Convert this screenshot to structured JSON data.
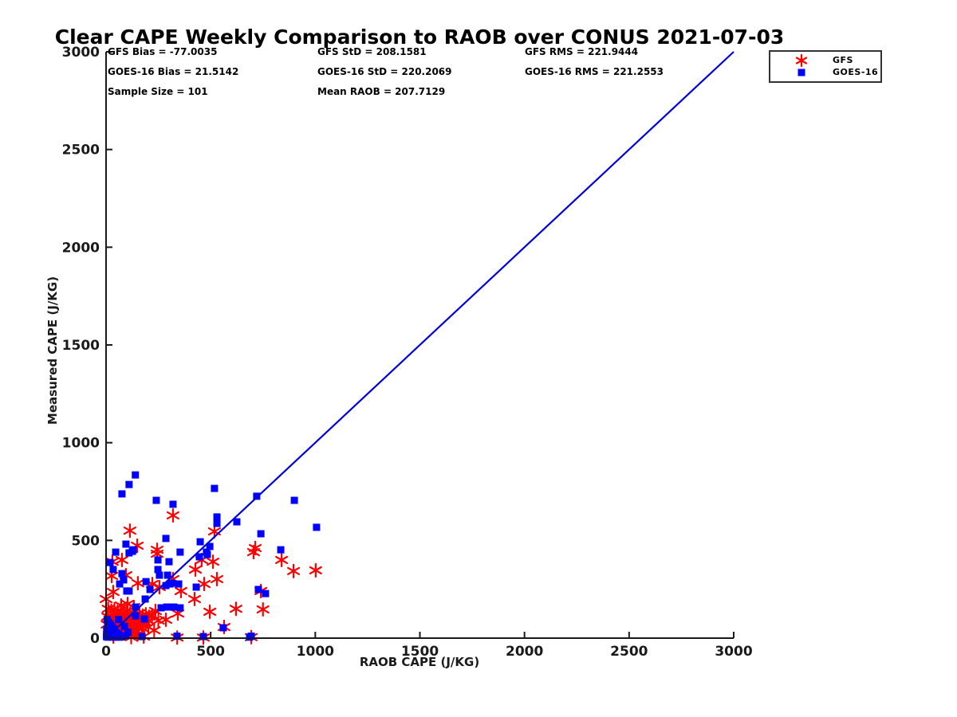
{
  "title": "Clear CAPE Weekly Comparison to RAOB over CONUS 2021-07-03",
  "stats": {
    "gfs_bias": "GFS Bias = -77.0035",
    "gfs_std": "GFS StD = 208.1581",
    "gfs_rms": "GFS RMS = 221.9444",
    "goes_bias": "GOES-16 Bias = 21.5142",
    "goes_std": "GOES-16 StD = 220.2069",
    "goes_rms": "GOES-16 RMS = 221.2553",
    "sample_size": "Sample Size = 101",
    "mean_raob": "Mean RAOB = 207.7129"
  },
  "colors": {
    "gfs": "#ff0000",
    "goes16": "#0000ff",
    "identity_line": "#0000dd",
    "axis": "#1a1a1a"
  },
  "chart_data": {
    "type": "scatter",
    "title": "Clear CAPE Weekly Comparison to RAOB over CONUS 2021-07-03",
    "xlabel": "RAOB CAPE (J/KG)",
    "ylabel": "Measured CAPE (J/KG)",
    "xlim": [
      0,
      3000
    ],
    "ylim": [
      0,
      3000
    ],
    "xticks": [
      0,
      500,
      1000,
      1500,
      2000,
      2500,
      3000
    ],
    "yticks": [
      0,
      500,
      1000,
      1500,
      2000,
      2500,
      3000
    ],
    "grid": false,
    "legend_position": "top-right",
    "identity_line": {
      "from": [
        0,
        0
      ],
      "to": [
        3000,
        3000
      ]
    },
    "annotations": [
      "GFS Bias = -77.0035",
      "GFS StD = 208.1581",
      "GFS RMS = 221.9444",
      "GOES-16 Bias = 21.5142",
      "GOES-16 StD = 220.2069",
      "GOES-16 RMS = 221.2553",
      "Sample Size = 101",
      "Mean RAOB = 207.7129"
    ],
    "series": [
      {
        "name": "GFS",
        "marker": "asterisk",
        "color": "#ff0000",
        "points": [
          [
            320,
            628
          ],
          [
            114,
            550
          ],
          [
            518,
            546
          ],
          [
            149,
            473
          ],
          [
            713,
            461
          ],
          [
            244,
            452
          ],
          [
            244,
            432
          ],
          [
            705,
            440
          ],
          [
            30,
            391
          ],
          [
            76,
            400
          ],
          [
            457,
            400
          ],
          [
            511,
            391
          ],
          [
            839,
            400
          ],
          [
            896,
            343
          ],
          [
            1002,
            347
          ],
          [
            427,
            351
          ],
          [
            423,
            200
          ],
          [
            469,
            277
          ],
          [
            530,
            302
          ],
          [
            320,
            302
          ],
          [
            358,
            241
          ],
          [
            27,
            318
          ],
          [
            95,
            322
          ],
          [
            152,
            281
          ],
          [
            221,
            277
          ],
          [
            255,
            261
          ],
          [
            496,
            135
          ],
          [
            621,
            150
          ],
          [
            750,
            147
          ],
          [
            740,
            241
          ],
          [
            0,
            200
          ],
          [
            34,
            236
          ],
          [
            72,
            167
          ],
          [
            103,
            175
          ],
          [
            133,
            159
          ],
          [
            236,
            139
          ],
          [
            286,
            94
          ],
          [
            343,
            126
          ],
          [
            202,
            57
          ],
          [
            564,
            57
          ],
          [
            694,
            5
          ],
          [
            465,
            3
          ],
          [
            340,
            3
          ],
          [
            10,
            150
          ],
          [
            25,
            140
          ],
          [
            40,
            148
          ],
          [
            55,
            135
          ],
          [
            70,
            142
          ],
          [
            85,
            130
          ],
          [
            100,
            138
          ],
          [
            115,
            125
          ],
          [
            130,
            132
          ],
          [
            145,
            120
          ],
          [
            160,
            128
          ],
          [
            175,
            115
          ],
          [
            190,
            122
          ],
          [
            205,
            110
          ],
          [
            220,
            118
          ],
          [
            8,
            110
          ],
          [
            22,
            102
          ],
          [
            36,
            108
          ],
          [
            50,
            98
          ],
          [
            64,
            105
          ],
          [
            78,
            95
          ],
          [
            92,
            100
          ],
          [
            106,
            92
          ],
          [
            120,
            98
          ],
          [
            134,
            88
          ],
          [
            148,
            95
          ],
          [
            162,
            85
          ],
          [
            176,
            90
          ],
          [
            190,
            80
          ],
          [
            204,
            88
          ],
          [
            5,
            70
          ],
          [
            18,
            65
          ],
          [
            32,
            70
          ],
          [
            46,
            60
          ],
          [
            60,
            66
          ],
          [
            74,
            58
          ],
          [
            88,
            62
          ],
          [
            102,
            55
          ],
          [
            116,
            60
          ],
          [
            130,
            52
          ],
          [
            144,
            56
          ],
          [
            158,
            48
          ],
          [
            172,
            52
          ],
          [
            15,
            35
          ],
          [
            30,
            30
          ],
          [
            45,
            35
          ],
          [
            60,
            28
          ],
          [
            75,
            32
          ],
          [
            90,
            25
          ],
          [
            105,
            30
          ],
          [
            120,
            22
          ],
          [
            135,
            26
          ],
          [
            150,
            18
          ],
          [
            35,
            8
          ],
          [
            120,
            5
          ],
          [
            180,
            8
          ],
          [
            230,
            40
          ],
          [
            250,
            90
          ]
        ]
      },
      {
        "name": "GOES-16",
        "marker": "square",
        "color": "#0000ff",
        "points": [
          [
            140,
            835
          ],
          [
            110,
            786
          ],
          [
            76,
            738
          ],
          [
            240,
            705
          ],
          [
            320,
            685
          ],
          [
            518,
            766
          ],
          [
            720,
            726
          ],
          [
            900,
            705
          ],
          [
            530,
            620
          ],
          [
            625,
            595
          ],
          [
            530,
            587
          ],
          [
            1006,
            567
          ],
          [
            740,
            534
          ],
          [
            286,
            510
          ],
          [
            450,
            493
          ],
          [
            496,
            469
          ],
          [
            95,
            481
          ],
          [
            130,
            452
          ],
          [
            835,
            452
          ],
          [
            110,
            436
          ],
          [
            46,
            440
          ],
          [
            126,
            444
          ],
          [
            354,
            440
          ],
          [
            480,
            440
          ],
          [
            446,
            416
          ],
          [
            484,
            428
          ],
          [
            248,
            400
          ],
          [
            301,
            391
          ],
          [
            19,
            387
          ],
          [
            34,
            351
          ],
          [
            248,
            351
          ],
          [
            76,
            330
          ],
          [
            294,
            322
          ],
          [
            255,
            322
          ],
          [
            84,
            298
          ],
          [
            191,
            289
          ],
          [
            313,
            281
          ],
          [
            305,
            277
          ],
          [
            347,
            277
          ],
          [
            65,
            277
          ],
          [
            286,
            269
          ],
          [
            431,
            261
          ],
          [
            210,
            249
          ],
          [
            728,
            249
          ],
          [
            110,
            241
          ],
          [
            99,
            241
          ],
          [
            187,
            200
          ],
          [
            290,
            159
          ],
          [
            324,
            159
          ],
          [
            263,
            155
          ],
          [
            354,
            155
          ],
          [
            141,
            159
          ],
          [
            762,
            228
          ],
          [
            183,
            98
          ],
          [
            141,
            114
          ],
          [
            560,
            53
          ],
          [
            694,
            10
          ],
          [
            686,
            5
          ],
          [
            465,
            8
          ],
          [
            339,
            10
          ],
          [
            172,
            8
          ],
          [
            72,
            6
          ],
          [
            5,
            95
          ],
          [
            12,
            80
          ],
          [
            20,
            70
          ],
          [
            8,
            60
          ],
          [
            15,
            55
          ],
          [
            25,
            60
          ],
          [
            3,
            45
          ],
          [
            10,
            40
          ],
          [
            18,
            42
          ],
          [
            28,
            45
          ],
          [
            35,
            50
          ],
          [
            5,
            30
          ],
          [
            12,
            28
          ],
          [
            22,
            30
          ],
          [
            30,
            32
          ],
          [
            40,
            35
          ],
          [
            48,
            28
          ],
          [
            3,
            18
          ],
          [
            10,
            15
          ],
          [
            18,
            16
          ],
          [
            26,
            18
          ],
          [
            34,
            20
          ],
          [
            42,
            15
          ],
          [
            52,
            18
          ],
          [
            60,
            22
          ],
          [
            2,
            8
          ],
          [
            8,
            5
          ],
          [
            15,
            6
          ],
          [
            22,
            8
          ],
          [
            30,
            5
          ],
          [
            38,
            8
          ],
          [
            46,
            5
          ],
          [
            55,
            8
          ],
          [
            65,
            5
          ],
          [
            80,
            10
          ],
          [
            95,
            12
          ],
          [
            105,
            30
          ],
          [
            88,
            60
          ],
          [
            60,
            95
          ]
        ]
      }
    ]
  }
}
